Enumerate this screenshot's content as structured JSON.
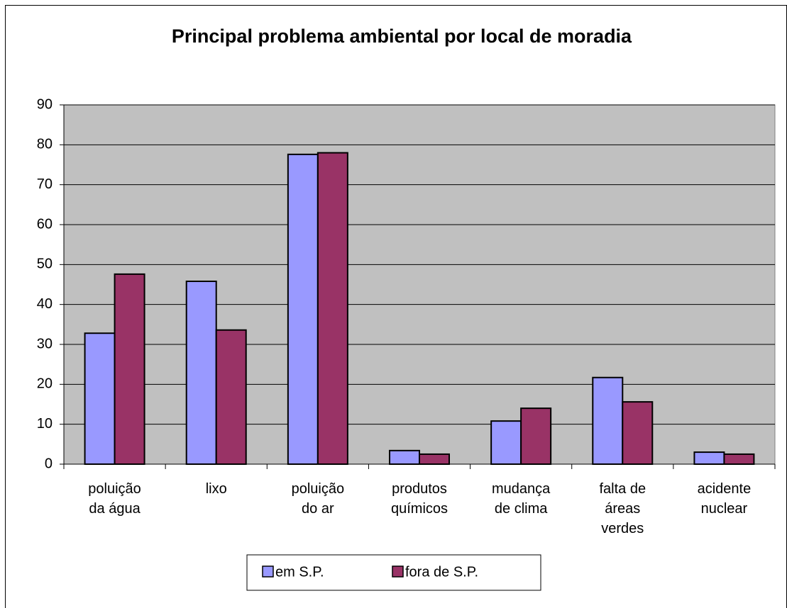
{
  "chart_data": {
    "type": "bar",
    "title": "Principal problema ambiental por local de moradia",
    "categories": [
      "poluição da água",
      "lixo",
      "poluição do ar",
      "produtos químicos",
      "mudança de clima",
      "falta de áreas verdes",
      "acidente nuclear"
    ],
    "series": [
      {
        "name": "em S.P.",
        "color": "#9999ff",
        "values": [
          32.8,
          45.8,
          77.6,
          3.4,
          10.8,
          21.7,
          3.0
        ]
      },
      {
        "name": "fora de S.P.",
        "color": "#993366",
        "values": [
          47.6,
          33.6,
          78.0,
          2.5,
          14.0,
          15.6,
          2.5
        ]
      }
    ],
    "ylim": [
      0,
      90
    ],
    "yticks": [
      0,
      10,
      20,
      30,
      40,
      50,
      60,
      70,
      80,
      90
    ],
    "grid": true,
    "plot_background": "#c0c0c0",
    "legend": "bottom"
  }
}
